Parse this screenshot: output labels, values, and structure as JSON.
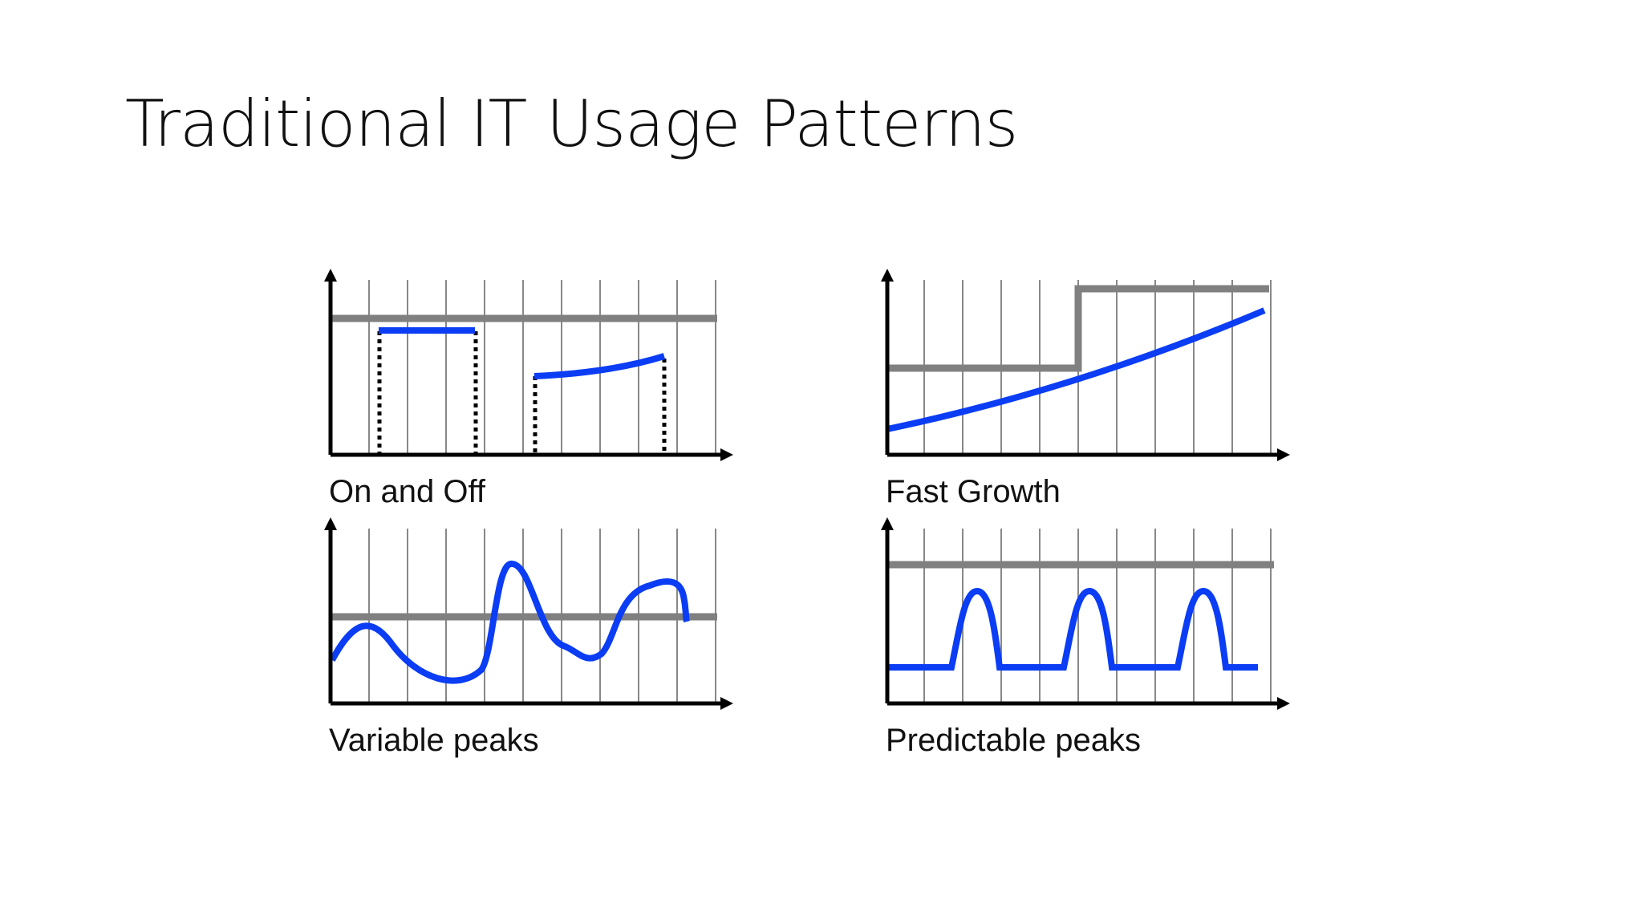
{
  "slide": {
    "title": "Traditional IT Usage Patterns"
  },
  "panels": [
    {
      "id": "on-off",
      "caption": "On and Off"
    },
    {
      "id": "fast-growth",
      "caption": "Fast Growth"
    },
    {
      "id": "variable-peaks",
      "caption": "Variable peaks"
    },
    {
      "id": "predictable-peaks",
      "caption": "Predictable peaks"
    }
  ],
  "colors": {
    "capacity_line": "#808080",
    "usage_line": "#0b3df5",
    "grid": "#888888",
    "axis": "#000000"
  }
}
